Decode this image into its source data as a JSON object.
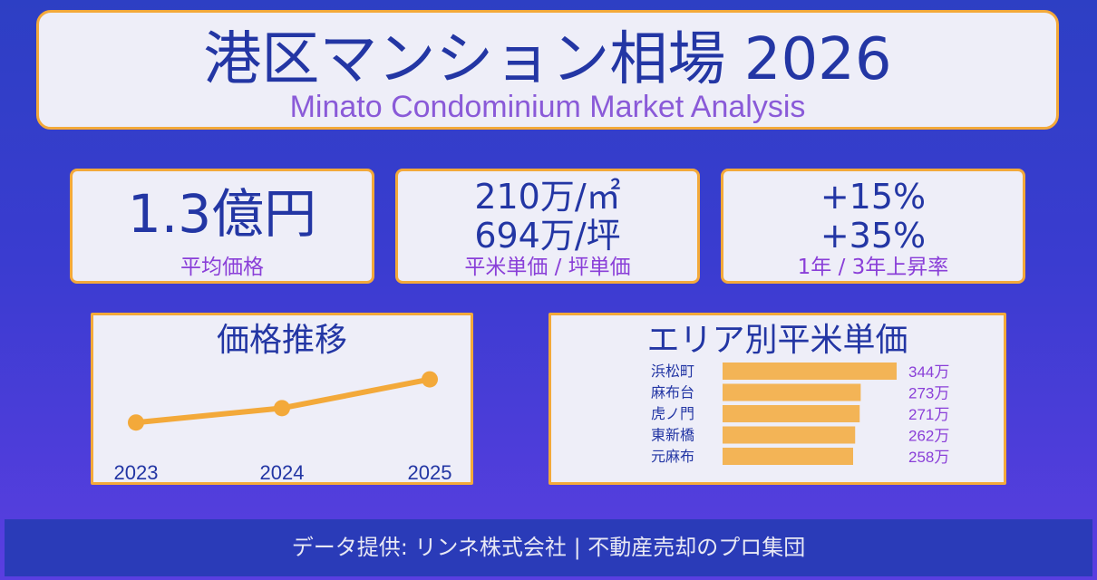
{
  "title": {
    "main": "港区マンション相場 2026",
    "sub": "Minato Condominium Market Analysis"
  },
  "stats": {
    "avg_price": {
      "value": "1.3億円",
      "caption": "平均価格"
    },
    "unit_price": {
      "line1": "210万/㎡",
      "line2": "694万/坪",
      "caption": "平米単価 / 坪単価"
    },
    "growth": {
      "line1": "+15%",
      "line2": "+35%",
      "caption": "1年 / 3年上昇率"
    }
  },
  "trend_panel": {
    "title": "価格推移"
  },
  "area_panel": {
    "title": "エリア別平米単価"
  },
  "chart_data": [
    {
      "type": "line",
      "title": "価格推移",
      "x": [
        "2023",
        "2024",
        "2025"
      ],
      "series": [
        {
          "values": [
            0.9,
            1.05,
            1.35
          ]
        }
      ],
      "ylim": [
        0.6,
        1.45
      ],
      "grid": false,
      "color": "#f3a93a"
    },
    {
      "type": "bar",
      "orientation": "horizontal",
      "title": "エリア別平米単価",
      "categories": [
        "浜松町",
        "麻布台",
        "虎ノ門",
        "東新橋",
        "元麻布"
      ],
      "values": [
        344,
        273,
        271,
        262,
        258
      ],
      "value_labels": [
        "344万",
        "273万",
        "271万",
        "262万",
        "258万"
      ],
      "xlim": [
        0,
        344
      ],
      "color": "#f3b456"
    }
  ],
  "footer": {
    "text": "データ提供: リンネ株式会社 | 不動産売却のプロ集団"
  }
}
